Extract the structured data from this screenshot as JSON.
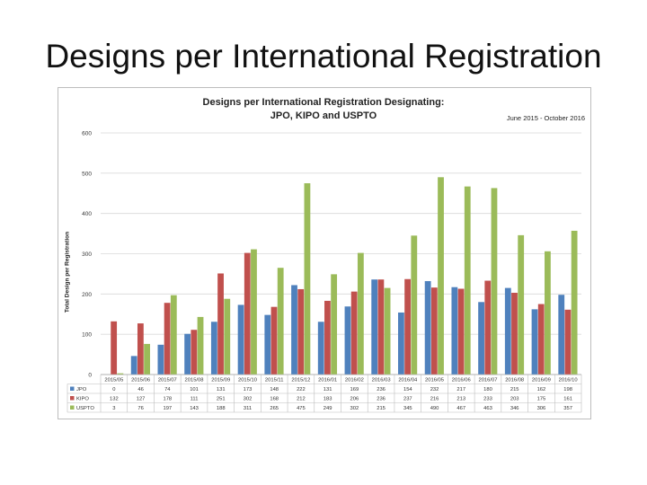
{
  "slide": {
    "title": "Designs per International Registration"
  },
  "chart_data": {
    "type": "bar",
    "title_lines": [
      "Designs per International Registration Designating:",
      "JPO, KIPO and USPTO"
    ],
    "date_range": "June 2015 - October 2016",
    "ylabel": "Total Design per Registration",
    "ylim": [
      0,
      600
    ],
    "yticks": [
      0,
      100,
      200,
      300,
      400,
      500,
      600
    ],
    "grid": true,
    "legend_placement": "table-left",
    "categories": [
      "2015/05",
      "2015/06",
      "2015/07",
      "2015/08",
      "2015/09",
      "2015/10",
      "2015/11",
      "2015/12",
      "2016/01",
      "2016/02",
      "2016/03",
      "2016/04",
      "2016/05",
      "2016/06",
      "2016/07",
      "2016/08",
      "2016/09",
      "2016/10"
    ],
    "series": [
      {
        "name": "JPO",
        "color": "#4f81bd",
        "values": [
          0,
          46,
          74,
          101,
          131,
          173,
          148,
          222,
          131,
          169,
          236,
          154,
          232,
          217,
          180,
          215,
          162,
          198
        ]
      },
      {
        "name": "KIPO",
        "color": "#c0504d",
        "values": [
          132,
          127,
          178,
          111,
          251,
          302,
          168,
          212,
          183,
          206,
          236,
          237,
          216,
          213,
          233,
          203,
          175,
          161
        ]
      },
      {
        "name": "USPTO",
        "color": "#9bbb59",
        "values": [
          3,
          76,
          197,
          143,
          188,
          311,
          265,
          475,
          249,
          302,
          215,
          345,
          490,
          467,
          463,
          346,
          306,
          357
        ]
      }
    ]
  }
}
